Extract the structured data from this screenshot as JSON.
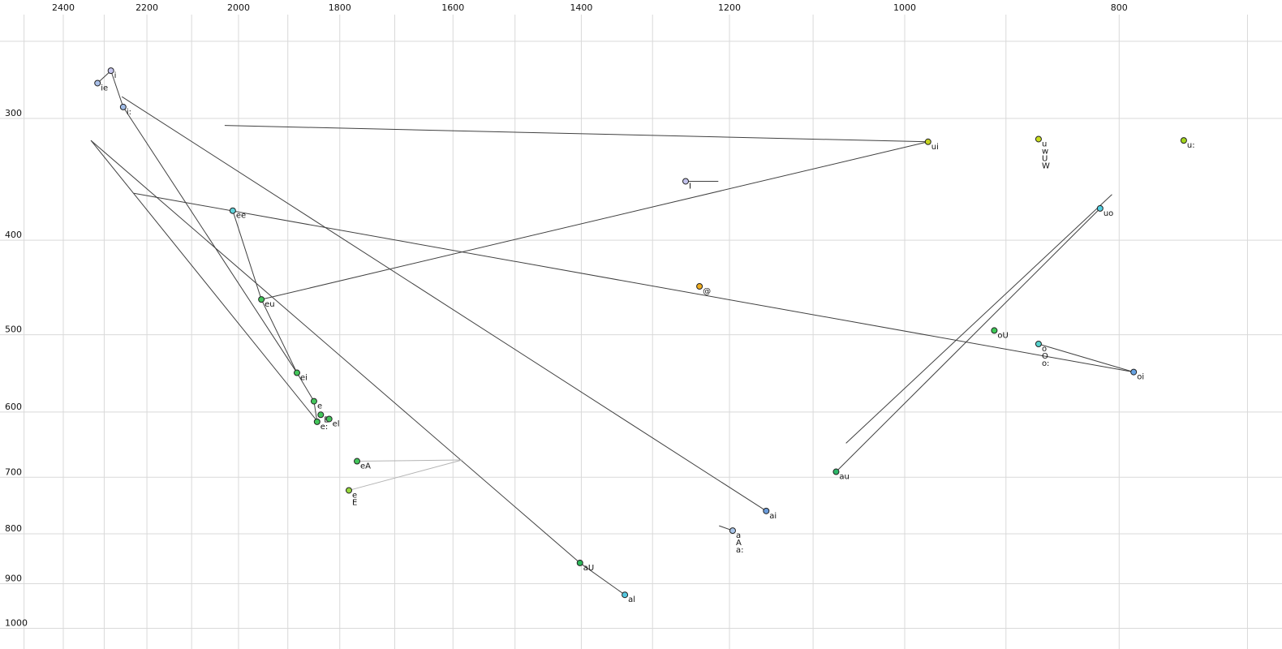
{
  "chart_data": {
    "type": "scatter",
    "title": "",
    "xlabel": "",
    "ylabel": "",
    "x_scale": "log-reversed",
    "y_scale": "log-inverted",
    "x_range": [
      2520,
      690
    ],
    "y_range": [
      245,
      1030
    ],
    "grid": true,
    "grid_color": "#d9d9d9",
    "trajectory_color": "#404040",
    "x_ticks": [
      2400,
      2200,
      2000,
      1800,
      1600,
      1400,
      1200,
      1000,
      800
    ],
    "y_ticks": [
      300,
      400,
      500,
      600,
      700,
      800,
      900,
      1000
    ],
    "x_grid": [
      2500,
      2400,
      2300,
      2200,
      2100,
      2000,
      1900,
      1800,
      1700,
      1600,
      1500,
      1400,
      1300,
      1200,
      1100,
      1000,
      900,
      800,
      700
    ],
    "y_grid": [
      250,
      300,
      400,
      500,
      600,
      700,
      800,
      900,
      1000
    ],
    "points": [
      {
        "label": "ie",
        "f2": 2316,
        "f1": 276,
        "color": "#a9bfe8"
      },
      {
        "label": "i",
        "f2": 2284,
        "f1": 268,
        "color": "#c6c6ee"
      },
      {
        "label": "i:",
        "f2": 2255,
        "f1": 292,
        "color": "#a0bce8"
      },
      {
        "label": "ui",
        "f2": 976,
        "f1": 317,
        "color": "#c6d31f"
      },
      {
        "label": "u",
        "f2": 870,
        "f1": 315,
        "color": "#c9dd1e",
        "extra_labels": [
          "w",
          "U",
          "W"
        ]
      },
      {
        "label": "u:",
        "f2": 748,
        "f1": 316,
        "color": "#a3d61c"
      },
      {
        "label": "I",
        "f2": 1256,
        "f1": 348,
        "color": "#c2c2ec"
      },
      {
        "label": "ee",
        "f2": 2012,
        "f1": 373,
        "color": "#5fd2da"
      },
      {
        "label": "uo",
        "f2": 816,
        "f1": 371,
        "color": "#53cfe2"
      },
      {
        "label": "@",
        "f2": 1238,
        "f1": 446,
        "color": "#f0ad1f"
      },
      {
        "label": "eu",
        "f2": 1953,
        "f1": 460,
        "color": "#43c65b"
      },
      {
        "label": "oU",
        "f2": 911,
        "f1": 495,
        "color": "#3cc856"
      },
      {
        "label": "o",
        "f2": 870,
        "f1": 511,
        "color": "#57d2cd",
        "extra_labels": [
          "O",
          "o:"
        ]
      },
      {
        "label": "oi",
        "f2": 788,
        "f1": 546,
        "color": "#67a3e3"
      },
      {
        "label": "ei",
        "f2": 1882,
        "f1": 547,
        "color": "#43c65b"
      },
      {
        "label": "e",
        "f2": 1849,
        "f1": 585,
        "color": "#43c65b"
      },
      {
        "label": "E",
        "f2": 1836,
        "f1": 604,
        "color": "#43c65b"
      },
      {
        "label": "e:",
        "f2": 1843,
        "f1": 614,
        "color": "#43c65b"
      },
      {
        "label": "el",
        "f2": 1820,
        "f1": 610,
        "color": "#43c65b"
      },
      {
        "label": "eA",
        "f2": 1768,
        "f1": 674,
        "color": "#43c65b"
      },
      {
        "label": "e",
        "f2": 1783,
        "f1": 722,
        "color": "#97d83c",
        "extra_labels": [
          "E"
        ],
        "label_color": "#9a9a9a"
      },
      {
        "label": "ai",
        "f2": 1155,
        "f1": 758,
        "color": "#6b9cdb"
      },
      {
        "label": "a",
        "f2": 1196,
        "f1": 794,
        "color": "#a9c6ea",
        "extra_labels": [
          "A",
          "a:"
        ]
      },
      {
        "label": "aU",
        "f2": 1402,
        "f1": 857,
        "color": "#2db75a"
      },
      {
        "label": "al",
        "f2": 1338,
        "f1": 924,
        "color": "#55c8e0"
      },
      {
        "label": "au",
        "f2": 1074,
        "f1": 691,
        "color": "#2db768"
      }
    ],
    "lines": [
      {
        "a": {
          "f2": 2029,
          "f1": 305
        },
        "b": {
          "f2": 976,
          "f1": 317
        }
      },
      {
        "a": {
          "f2": 976,
          "f1": 317
        },
        "b": {
          "f2": 1953,
          "f1": 460
        }
      },
      {
        "a": {
          "f2": 2316,
          "f1": 276
        },
        "b": {
          "f2": 2284,
          "f1": 268
        }
      },
      {
        "a": {
          "f2": 2284,
          "f1": 268
        },
        "b": {
          "f2": 2255,
          "f1": 292
        }
      },
      {
        "a": {
          "f2": 2012,
          "f1": 373
        },
        "b": {
          "f2": 1953,
          "f1": 460
        }
      },
      {
        "a": {
          "f2": 1953,
          "f1": 460
        },
        "b": {
          "f2": 1882,
          "f1": 547
        }
      },
      {
        "a": {
          "f2": 1882,
          "f1": 547
        },
        "b": {
          "f2": 1849,
          "f1": 585
        }
      },
      {
        "a": {
          "f2": 1849,
          "f1": 585
        },
        "b": {
          "f2": 1843,
          "f1": 614
        }
      },
      {
        "a": {
          "f2": 1256,
          "f1": 348
        },
        "b": {
          "f2": 1214,
          "f1": 348
        }
      },
      {
        "a": {
          "f2": 1213,
          "f1": 785
        },
        "b": {
          "f2": 1196,
          "f1": 794
        }
      },
      {
        "a": {
          "f2": 2258,
          "f1": 285
        },
        "b": {
          "f2": 1155,
          "f1": 758
        }
      },
      {
        "a": {
          "f2": 2332,
          "f1": 316
        },
        "b": {
          "f2": 1402,
          "f1": 857
        }
      },
      {
        "a": {
          "f2": 1402,
          "f1": 857
        },
        "b": {
          "f2": 1338,
          "f1": 924
        }
      },
      {
        "a": {
          "f2": 816,
          "f1": 371
        },
        "b": {
          "f2": 1074,
          "f1": 691
        }
      },
      {
        "a": {
          "f2": 806,
          "f1": 359
        },
        "b": {
          "f2": 1063,
          "f1": 646
        }
      },
      {
        "a": {
          "f2": 870,
          "f1": 511
        },
        "b": {
          "f2": 788,
          "f1": 546
        }
      },
      {
        "a": {
          "f2": 2230,
          "f1": 358
        },
        "b": {
          "f2": 788,
          "f1": 546
        }
      },
      {
        "a": {
          "f2": 2332,
          "f1": 316
        },
        "b": {
          "f2": 1845,
          "f1": 611
        }
      },
      {
        "a": {
          "f2": 2255,
          "f1": 292
        },
        "b": {
          "f2": 1882,
          "f1": 547
        }
      },
      {
        "a": {
          "f2": 1768,
          "f1": 674
        },
        "b": {
          "f2": 1585,
          "f1": 672
        },
        "color": "#b4b4b4"
      },
      {
        "a": {
          "f2": 1783,
          "f1": 722
        },
        "b": {
          "f2": 1585,
          "f1": 672
        },
        "color": "#b4b4b4"
      }
    ]
  }
}
